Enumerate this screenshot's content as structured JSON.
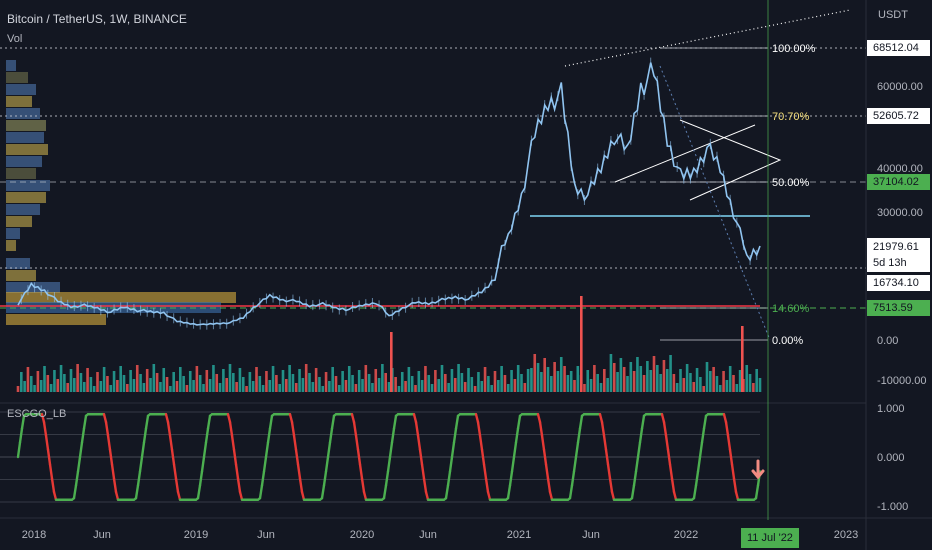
{
  "header": {
    "symbol": "Bitcoin / TetherUS, 1W, BINANCE",
    "volume_label": "Vol",
    "oscillator_label": "ESCGO_LB"
  },
  "price_axis": {
    "currency": "USDT",
    "ticks": [
      "60000.00",
      "40000.00",
      "30000.00"
    ],
    "price_tags": [
      {
        "label": "68512.04",
        "value": 68512.04,
        "style": "white"
      },
      {
        "label": "52605.72",
        "value": 52605.72,
        "style": "white"
      },
      {
        "label": "37104.02",
        "value": 37104.02,
        "style": "green"
      },
      {
        "label": "21979.61",
        "value": 21979.61,
        "style": "current"
      },
      {
        "label": "16734.10",
        "value": 16734.1,
        "style": "white"
      },
      {
        "label": "7513.59",
        "value": 7513.59,
        "style": "green"
      }
    ],
    "countdown": "5d 13h"
  },
  "volume_axis": {
    "ticks": [
      "0.00",
      "-10000.00"
    ]
  },
  "oscillator_axis": {
    "ticks": [
      "1.000",
      "0.000",
      "-1.000"
    ],
    "range": [
      -1,
      1
    ]
  },
  "time_axis": {
    "ticks": [
      "2018",
      "Jun",
      "2019",
      "Jun",
      "2020",
      "Jun",
      "2021",
      "Jun",
      "2022",
      "Jun",
      "2023"
    ],
    "current_date": "11 Jul '22"
  },
  "fib_levels": [
    {
      "label": "100.00%",
      "price": 68512.04,
      "color": "#ffffff"
    },
    {
      "label": "70.70%",
      "price": 52605.72,
      "color": "#f7e17d"
    },
    {
      "label": "50.00%",
      "price": 37104.02,
      "color": "#ffffff"
    },
    {
      "label": "14.60%",
      "price": 7513.59,
      "color": "#4caf50"
    },
    {
      "label": "0.00%",
      "price": -130,
      "color": "#ffffff"
    }
  ],
  "colors": {
    "background": "#131722",
    "price_line": "#90c4f0",
    "bull_volume": "#26a69a",
    "bear_volume": "#ef5350",
    "oscillator_bull": "#4caf50",
    "oscillator_bear": "#e53935",
    "resistance_line": "#f23645",
    "support_line": "#7fd6f5",
    "current_date_tag": "#4caf50"
  },
  "icons": [
    "down-arrow-icon"
  ],
  "chart_data": {
    "type": "line",
    "title": "Bitcoin / TetherUS, 1W, BINANCE",
    "series": [
      {
        "name": "Bitcoin / TetherUS",
        "x": [
          "2017-11",
          "2017-12",
          "2018-01",
          "2018-02",
          "2018-03",
          "2018-04",
          "2018-05",
          "2018-06",
          "2018-07",
          "2018-08",
          "2018-09",
          "2018-10",
          "2018-11",
          "2018-12",
          "2019-01",
          "2019-02",
          "2019-03",
          "2019-04",
          "2019-05",
          "2019-06",
          "2019-07",
          "2019-08",
          "2019-09",
          "2019-10",
          "2019-11",
          "2019-12",
          "2020-01",
          "2020-02",
          "2020-03",
          "2020-04",
          "2020-05",
          "2020-06",
          "2020-07",
          "2020-08",
          "2020-09",
          "2020-10",
          "2020-11",
          "2020-12",
          "2021-01",
          "2021-02",
          "2021-03",
          "2021-04",
          "2021-05",
          "2021-06",
          "2021-07",
          "2021-08",
          "2021-09",
          "2021-10",
          "2021-11",
          "2021-12",
          "2022-01",
          "2022-02",
          "2022-03",
          "2022-04",
          "2022-05",
          "2022-06",
          "2022-07"
        ],
        "values": [
          9000,
          16000,
          14000,
          10000,
          8000,
          8500,
          7500,
          6500,
          7800,
          7000,
          6600,
          6400,
          4300,
          3800,
          3500,
          3800,
          4000,
          5200,
          8500,
          12000,
          10500,
          10000,
          8300,
          9000,
          7500,
          7200,
          8500,
          9500,
          5500,
          7500,
          9500,
          9200,
          10500,
          11500,
          10800,
          13500,
          18000,
          24000,
          34000,
          48000,
          56000,
          58000,
          36000,
          34000,
          40000,
          48000,
          44000,
          60000,
          63000,
          47000,
          38000,
          39000,
          45000,
          40000,
          30000,
          20000,
          21980
        ]
      }
    ],
    "ylabel": "USDT",
    "oscillator": {
      "name": "ESCGO_LB",
      "range": [
        -1,
        1
      ],
      "last_value": -0.9
    },
    "grid": false
  }
}
